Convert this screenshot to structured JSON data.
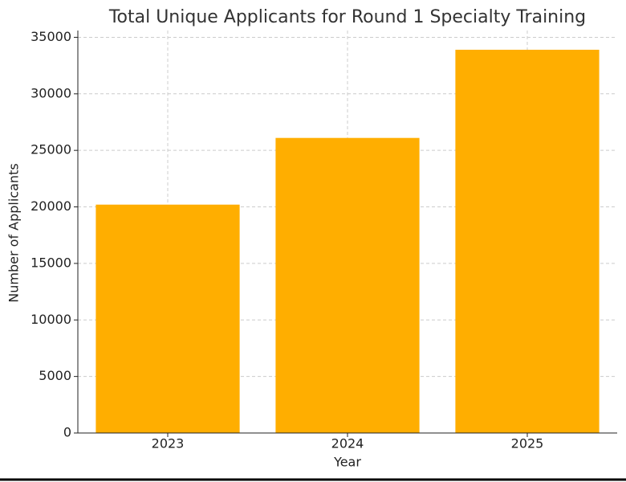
{
  "chart_data": {
    "type": "bar",
    "title": "Total Unique Applicants for Round 1 Specialty Training",
    "x_label": "Year",
    "y_label": "Number of Applicants",
    "categories": [
      "2023",
      "2024",
      "2025"
    ],
    "values": [
      20200,
      26100,
      33900
    ],
    "color": "#ffae00",
    "ylim": [
      0,
      35600
    ],
    "yticks": [
      0,
      5000,
      10000,
      15000,
      20000,
      25000,
      30000,
      35000
    ],
    "grid": true
  }
}
